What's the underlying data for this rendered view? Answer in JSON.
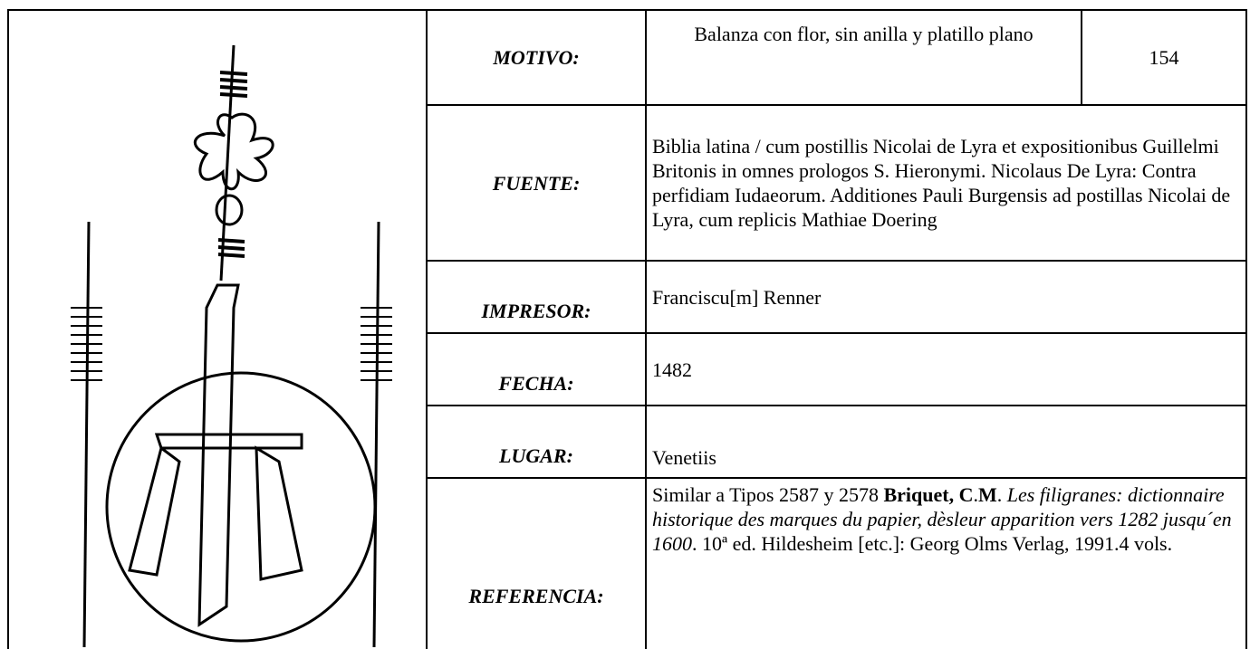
{
  "table": {
    "rows": [
      {
        "label": "MOTIVO:",
        "value": "Balanza con flor, sin anilla y platillo plano",
        "number": "154"
      },
      {
        "label": "FUENTE:",
        "value": "Biblia latina / cum postillis Nicolai de Lyra et expositionibus Guillelmi Britonis in omnes prologos S. Hieronymi. Nicolaus De Lyra: Contra perfidiam Iudaeorum. Additiones Pauli Burgensis ad postillas Nicolai de Lyra, cum replicis Mathiae Doering"
      },
      {
        "label": "IMPRESOR:",
        "value": "Franciscu[m] Renner"
      },
      {
        "label": "FECHA:",
        "value": "1482"
      },
      {
        "label": "LUGAR:",
        "value": "Venetiis"
      },
      {
        "label": "REFERENCIA:",
        "value": [
          "Similar a Tipos 2587 y 2578 ",
          "Briquet, C",
          ".",
          "M",
          ". ",
          "Les filigranes: dictionnaire historique des marques du papier, dèsleur apparition vers 1282 jusqu´en 1600",
          ". 10ª ed. Hildesheim [etc.]: Georg Olms Verlag, 1991.4 vols."
        ]
      }
    ]
  }
}
